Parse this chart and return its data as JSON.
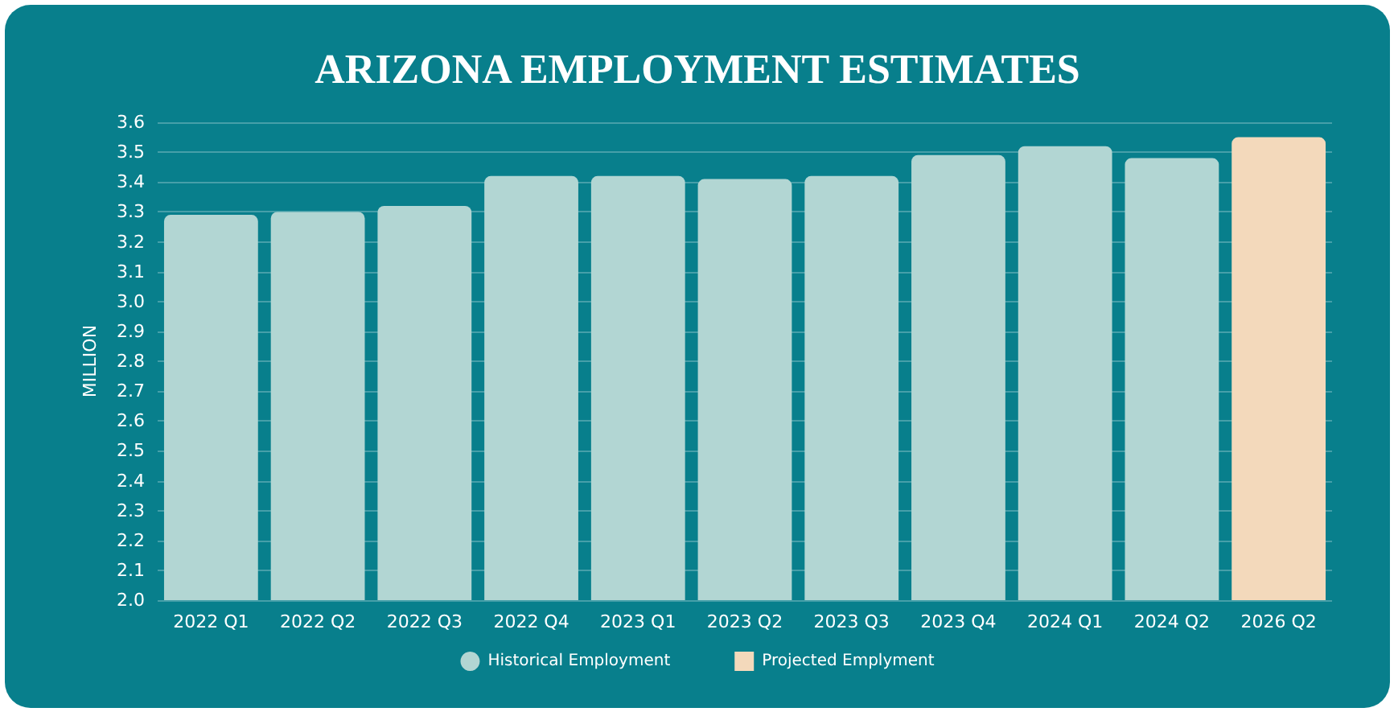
{
  "chart_data": {
    "type": "bar",
    "title": "ARIZONA EMPLOYMENT ESTIMATES",
    "ylabel": "MILLION",
    "categories": [
      "2022 Q1",
      "2022 Q2",
      "2022 Q3",
      "2022 Q4",
      "2023 Q1",
      "2023 Q2",
      "2023 Q3",
      "2023 Q4",
      "2024 Q1",
      "2024 Q2",
      "2026 Q2"
    ],
    "series": [
      {
        "name": "Historical Employment",
        "color": "#b2d6d3",
        "values": [
          3.29,
          3.3,
          3.32,
          3.42,
          3.42,
          3.41,
          3.42,
          3.49,
          3.52,
          3.48,
          null
        ]
      },
      {
        "name": "Projected Emplyment",
        "color": "#f3d9bb",
        "values": [
          null,
          null,
          null,
          null,
          null,
          null,
          null,
          null,
          null,
          null,
          3.55
        ]
      }
    ],
    "ylim": [
      2.0,
      3.6
    ],
    "yticks": [
      {
        "value": 2,
        "label": "2.0"
      },
      2.1,
      2.2,
      2.3,
      2.4,
      2.5,
      2.6,
      2.7,
      2.8,
      2.9,
      {
        "value": 3,
        "label": "3.0"
      },
      3.1,
      3.2,
      3.3,
      3.4,
      3.5,
      3.6
    ],
    "grid": "y",
    "legend": "bottom"
  }
}
